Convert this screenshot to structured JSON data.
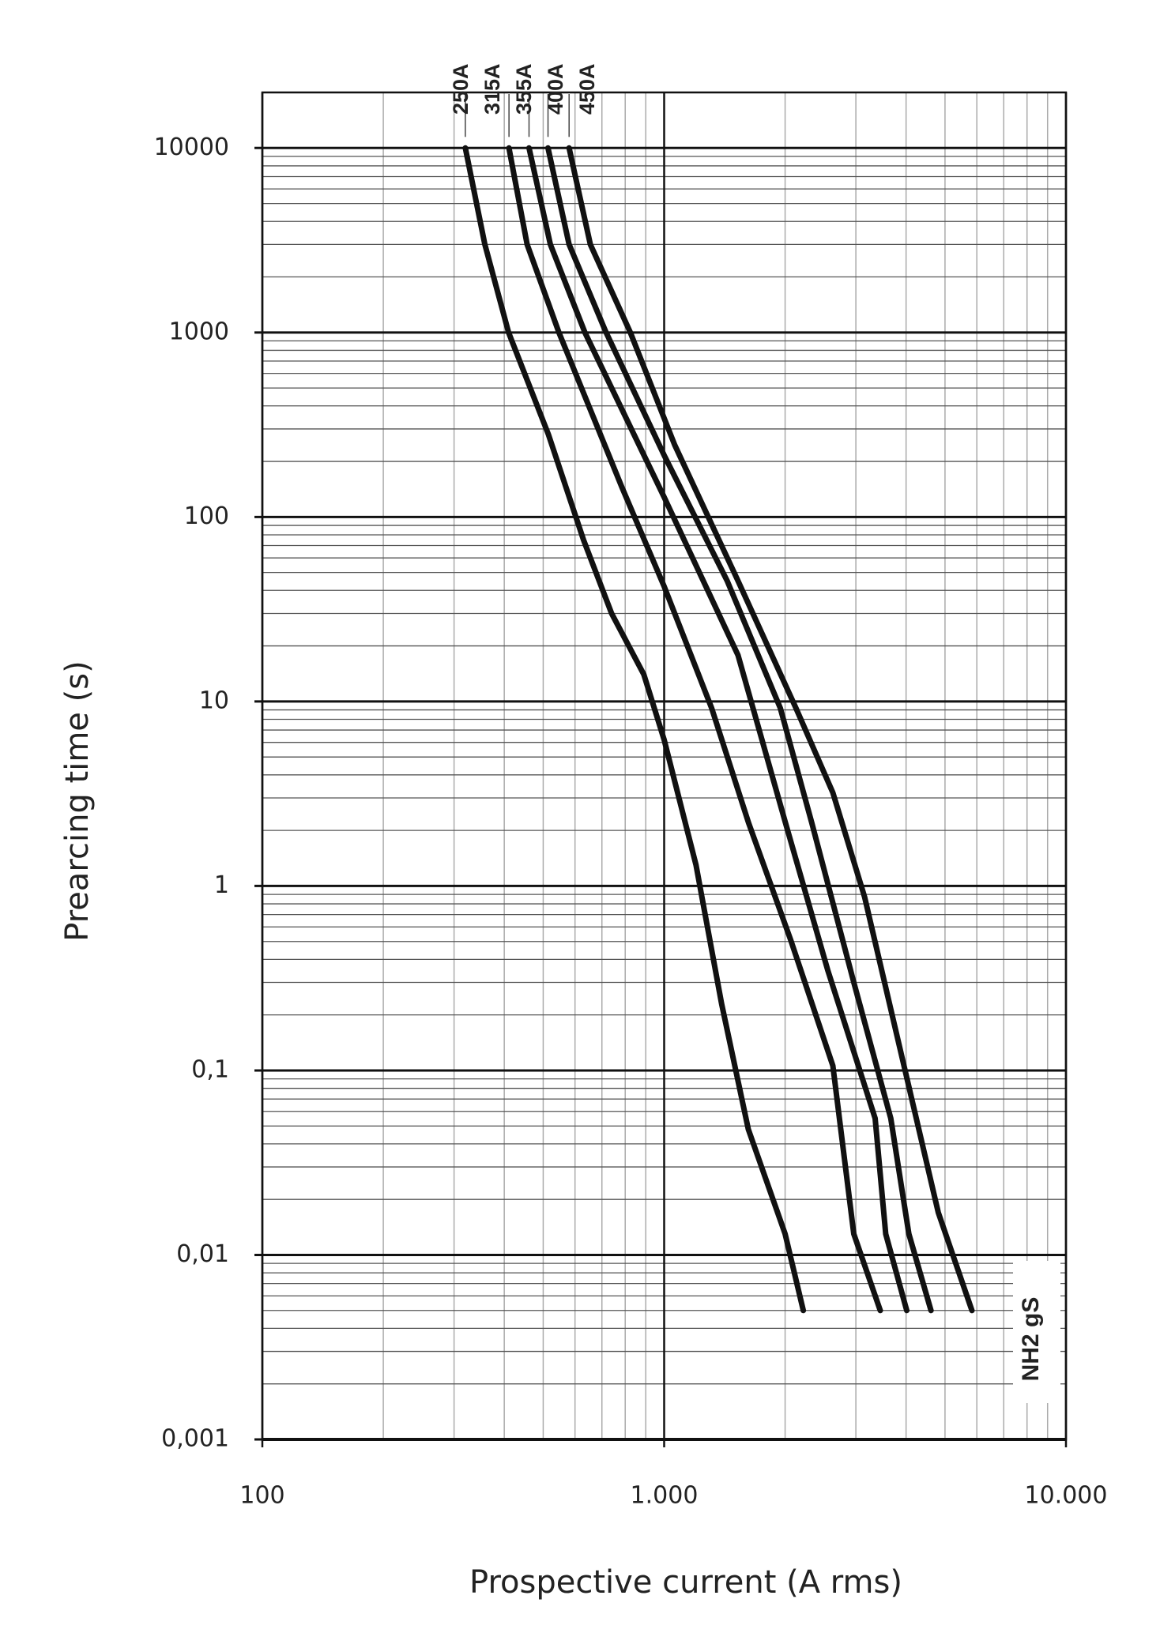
{
  "chart_data": {
    "type": "line",
    "x_label": "Prospective current (A rms)",
    "y_label": "Prearcing time (s)",
    "annotation": "NH2 gS",
    "x_scale": "log",
    "y_scale": "log",
    "xlim": [
      100,
      10000
    ],
    "ylim": [
      0.001,
      20000
    ],
    "xticks": [
      100,
      {
        "value": 1000,
        "label": "1.000"
      },
      {
        "value": 10000,
        "label": "10.000"
      }
    ],
    "yticks": [
      10000,
      1000,
      100,
      10,
      1,
      {
        "value": 0.1,
        "label": "0,1"
      },
      {
        "value": 0.01,
        "label": "0,01"
      },
      {
        "value": 0.001,
        "label": "0,001"
      }
    ],
    "grid": true,
    "series": [
      {
        "name": "250A",
        "color": "#111111",
        "x": [
          320,
          358,
          410,
          515,
          630,
          740,
          890,
          1000,
          1200,
          1390,
          1620,
          2000,
          2220
        ],
        "values": [
          10000,
          3000,
          1000,
          280,
          75,
          30,
          14,
          6.2,
          1.3,
          0.23,
          0.048,
          0.013,
          0.005
        ]
      },
      {
        "name": "315A",
        "color": "#111111",
        "x": [
          411,
          456,
          547,
          785,
          1000,
          1313,
          1622,
          2065,
          2630,
          2965,
          3450
        ],
        "values": [
          10000,
          3000,
          1000,
          145,
          42,
          9.2,
          2.2,
          0.51,
          0.106,
          0.013,
          0.005
        ]
      },
      {
        "name": "355A",
        "color": "#111111",
        "x": [
          461,
          521,
          635,
          1000,
          1527,
          2004,
          2553,
          3350,
          3560,
          4015
        ],
        "values": [
          10000,
          3000,
          1000,
          128,
          17.8,
          2.2,
          0.35,
          0.055,
          0.013,
          0.005
        ]
      },
      {
        "name": "400A",
        "color": "#111111",
        "x": [
          514,
          580,
          717,
          1000,
          1435,
          1946,
          2330,
          2965,
          3665,
          4064,
          4615
        ],
        "values": [
          10000,
          3000,
          1000,
          216,
          45,
          9.2,
          2.2,
          0.3,
          0.055,
          0.013,
          0.005
        ]
      },
      {
        "name": "450A",
        "color": "#111111",
        "x": [
          580,
          655,
          824,
          1062,
          1527,
          2128,
          2630,
          3155,
          3900,
          4810,
          5835
        ],
        "values": [
          10000,
          3000,
          1000,
          246,
          45,
          9.2,
          3.2,
          0.87,
          0.12,
          0.017,
          0.005
        ]
      }
    ]
  }
}
